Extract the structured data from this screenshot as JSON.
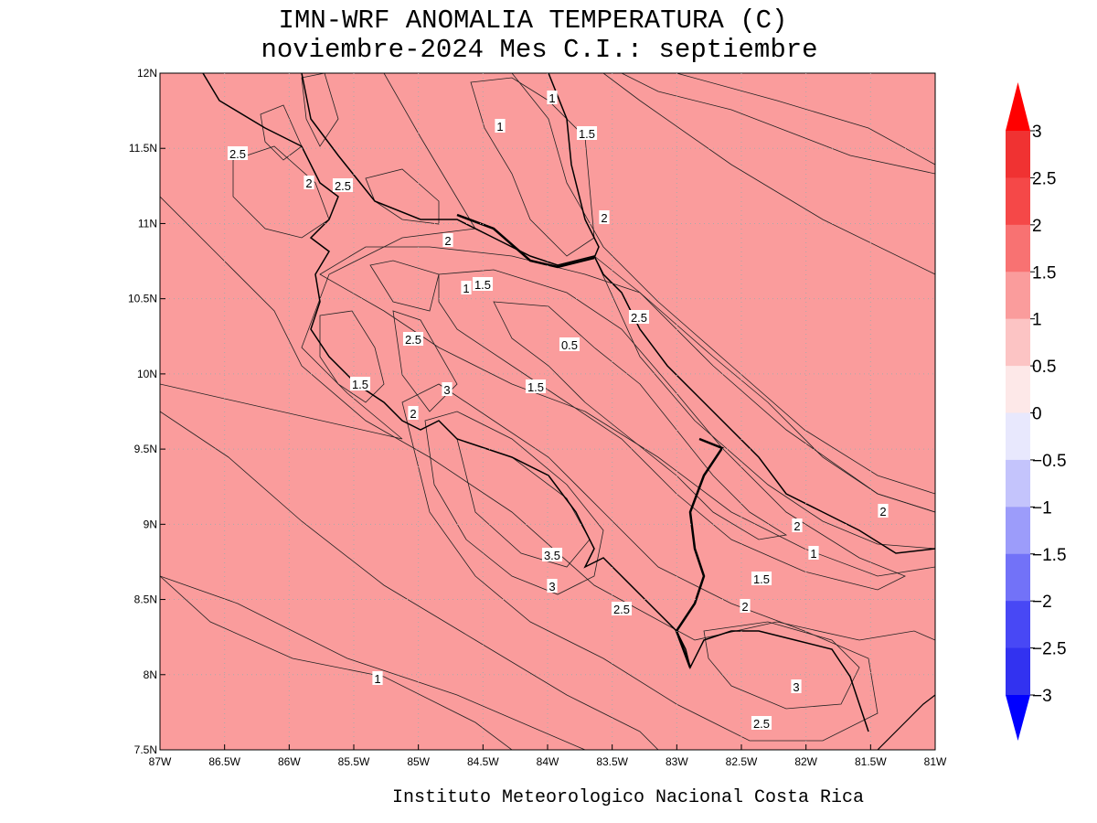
{
  "title": [
    "IMN-WRF  ANOMALIA TEMPERATURA (C)",
    "noviembre-2024 Mes C.I.: septiembre"
  ],
  "footer": "Instituto Meteorologico Nacional Costa Rica",
  "x_labels": [
    "87W",
    "86.5W",
    "86W",
    "85.5W",
    "85W",
    "84.5W",
    "84W",
    "83.5W",
    "83W",
    "82.5W",
    "82W",
    "81.5W",
    "81W"
  ],
  "y_labels": [
    "12N",
    "11.5N",
    "11N",
    "10.5N",
    "10N",
    "9.5N",
    "9N",
    "8.5N",
    "8N",
    "7.5N"
  ],
  "colorbar": {
    "labels": [
      "3",
      "2.5",
      "2",
      "1.5",
      "1",
      "0.5",
      "0",
      "−0.5",
      "−1",
      "−1.5",
      "−2",
      "−2.5",
      "−3"
    ],
    "colors": [
      "#ff0000",
      "#f03232",
      "#f54848",
      "#f87272",
      "#fa9c9c",
      "#fcc4c4",
      "#fde8e8",
      "#e8e8fd",
      "#c4c4fc",
      "#9c9cfa",
      "#7272f8",
      "#4848f5",
      "#3232f0",
      "#0000ff"
    ]
  },
  "contour_labels": [
    "2.5",
    "2",
    "2.5",
    "1",
    "1",
    "1.5",
    "2",
    "2",
    "1",
    "1.5",
    "2.5",
    "2.5",
    "0.5",
    "1.5",
    "3",
    "1.5",
    "2",
    "2",
    "2",
    "1",
    "3.5",
    "1.5",
    "3",
    "2.5",
    "2",
    "1",
    "3",
    "2.5"
  ]
}
